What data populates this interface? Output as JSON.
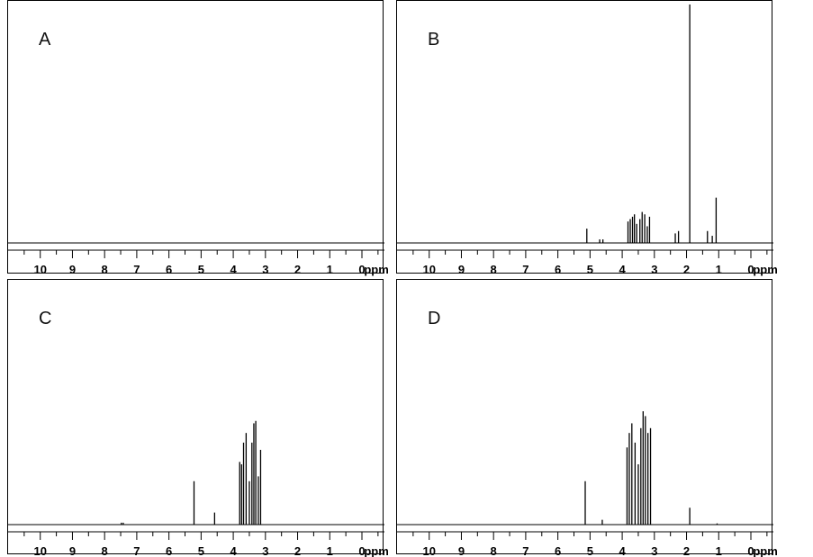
{
  "chart_data": [
    {
      "type": "line",
      "panel": "A",
      "xlabel": "ppm",
      "ticks": [
        "10",
        "9",
        "8",
        "7",
        "6",
        "5",
        "4",
        "3",
        "2",
        "1",
        "0"
      ],
      "xlim": [
        11.0,
        -0.7
      ],
      "peaks": []
    },
    {
      "type": "line",
      "panel": "B",
      "xlabel": "ppm",
      "ticks": [
        "10",
        "9",
        "8",
        "7",
        "6",
        "5",
        "4",
        "3",
        "2",
        "1",
        "0"
      ],
      "xlim": [
        11.0,
        -0.7
      ],
      "peaks": [
        {
          "x": 5.1,
          "y": 0.06
        },
        {
          "x": 4.7,
          "y": 0.015
        },
        {
          "x": 4.6,
          "y": 0.015
        },
        {
          "x": 3.82,
          "y": 0.09
        },
        {
          "x": 3.75,
          "y": 0.1
        },
        {
          "x": 3.68,
          "y": 0.11
        },
        {
          "x": 3.62,
          "y": 0.12
        },
        {
          "x": 3.55,
          "y": 0.08
        },
        {
          "x": 3.45,
          "y": 0.1
        },
        {
          "x": 3.38,
          "y": 0.13
        },
        {
          "x": 3.3,
          "y": 0.12
        },
        {
          "x": 3.22,
          "y": 0.07
        },
        {
          "x": 3.15,
          "y": 0.11
        },
        {
          "x": 2.35,
          "y": 0.04
        },
        {
          "x": 2.25,
          "y": 0.05
        },
        {
          "x": 1.9,
          "y": 1.0
        },
        {
          "x": 1.35,
          "y": 0.05
        },
        {
          "x": 1.2,
          "y": 0.03
        },
        {
          "x": 1.08,
          "y": 0.19
        }
      ]
    },
    {
      "type": "line",
      "panel": "C",
      "xlabel": "ppm",
      "ticks": [
        "10",
        "9",
        "8",
        "7",
        "6",
        "5",
        "4",
        "3",
        "2",
        "1",
        "0"
      ],
      "xlim": [
        11.0,
        -0.7
      ],
      "peaks": [
        {
          "x": 7.48,
          "y": 0.008
        },
        {
          "x": 7.42,
          "y": 0.008
        },
        {
          "x": 5.22,
          "y": 0.18
        },
        {
          "x": 4.58,
          "y": 0.05
        },
        {
          "x": 3.8,
          "y": 0.26
        },
        {
          "x": 3.74,
          "y": 0.25
        },
        {
          "x": 3.68,
          "y": 0.34
        },
        {
          "x": 3.6,
          "y": 0.38
        },
        {
          "x": 3.5,
          "y": 0.18
        },
        {
          "x": 3.42,
          "y": 0.34
        },
        {
          "x": 3.36,
          "y": 0.42
        },
        {
          "x": 3.3,
          "y": 0.43
        },
        {
          "x": 3.22,
          "y": 0.2
        },
        {
          "x": 3.15,
          "y": 0.31
        }
      ]
    },
    {
      "type": "line",
      "panel": "D",
      "xlabel": "ppm",
      "ticks": [
        "10",
        "9",
        "8",
        "7",
        "6",
        "5",
        "4",
        "3",
        "2",
        "1",
        "0"
      ],
      "xlim": [
        11.0,
        -0.7
      ],
      "peaks": [
        {
          "x": 5.15,
          "y": 0.18
        },
        {
          "x": 4.62,
          "y": 0.02
        },
        {
          "x": 3.85,
          "y": 0.32
        },
        {
          "x": 3.78,
          "y": 0.38
        },
        {
          "x": 3.7,
          "y": 0.42
        },
        {
          "x": 3.6,
          "y": 0.34
        },
        {
          "x": 3.5,
          "y": 0.25
        },
        {
          "x": 3.42,
          "y": 0.4
        },
        {
          "x": 3.35,
          "y": 0.47
        },
        {
          "x": 3.28,
          "y": 0.45
        },
        {
          "x": 3.2,
          "y": 0.38
        },
        {
          "x": 3.12,
          "y": 0.4
        },
        {
          "x": 1.9,
          "y": 0.07
        },
        {
          "x": 1.05,
          "y": 0.005
        }
      ]
    }
  ]
}
